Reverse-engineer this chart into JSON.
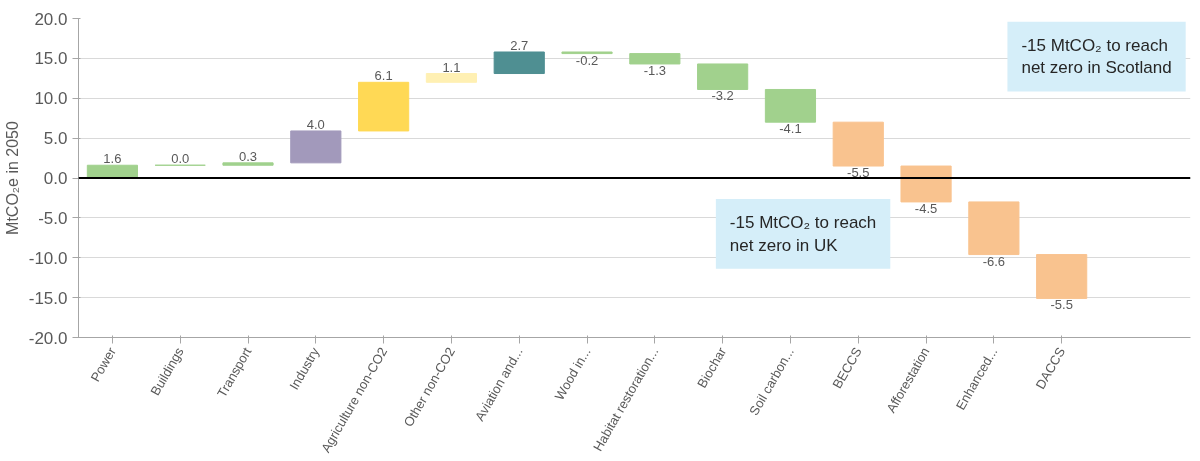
{
  "chart_data": {
    "type": "bar",
    "ylabel": "MtCO₂e in 2050",
    "categories": [
      "Power",
      "Buildings",
      "Transport",
      "Industry",
      "Agriculture non-CO2",
      "Other non-CO2",
      "Aviation and...",
      "Wood in...",
      "Habitat restoration...",
      "Biochar",
      "Soil carbon...",
      "BECCS",
      "Afforestation",
      "Enhanced...",
      "DACCS"
    ],
    "values": [
      1.6,
      0.0,
      0.3,
      4.0,
      6.1,
      1.1,
      2.7,
      -0.2,
      -1.3,
      -3.2,
      -4.1,
      -5.5,
      -4.5,
      -6.6,
      -5.5
    ],
    "base": [
      0,
      1.6,
      1.6,
      1.9,
      5.9,
      12.0,
      13.1,
      15.8,
      15.6,
      14.3,
      11.1,
      7.0,
      1.5,
      -3.0,
      -9.6
    ],
    "colors": [
      "#a1d18d",
      "#a1d18d",
      "#a1d18d",
      "#a299bb",
      "#ffd955",
      "#fff0b3",
      "#4f8f92",
      "#a1d18d",
      "#a1d18d",
      "#a1d18d",
      "#a1d18d",
      "#f9c38f",
      "#f9c38f",
      "#f9c38f",
      "#f9c38f"
    ],
    "value_labels": [
      "1.6",
      "0.0",
      "0.3",
      "4.0",
      "6.1",
      "1.1",
      "2.7",
      "-0.2",
      "-1.3",
      "-3.2",
      "-4.1",
      "-5.5",
      "-4.5",
      "-6.6",
      "-5.5"
    ],
    "ylim": [
      -20,
      20
    ],
    "yticks": [
      {
        "value": -20,
        "label": "-20.0"
      },
      {
        "value": -15,
        "label": "-15.0"
      },
      {
        "value": -10,
        "label": "-10.0"
      },
      {
        "value": -5,
        "label": "-5.0"
      },
      {
        "value": 0,
        "label": "0.0"
      },
      {
        "value": 5,
        "label": "5.0"
      },
      {
        "value": 10,
        "label": "10.0"
      },
      {
        "value": 15,
        "label": "15.0"
      },
      {
        "value": 20,
        "label": "20.0"
      }
    ],
    "grid": "y",
    "ref_lines": [
      {
        "axis": "y",
        "value": 0,
        "label": null,
        "color": "#000000"
      }
    ],
    "annotations": [
      "-15 MtCO₂ to reach net zero in Scotland",
      "-15 MtCO₂ to reach net zero in UK"
    ]
  }
}
